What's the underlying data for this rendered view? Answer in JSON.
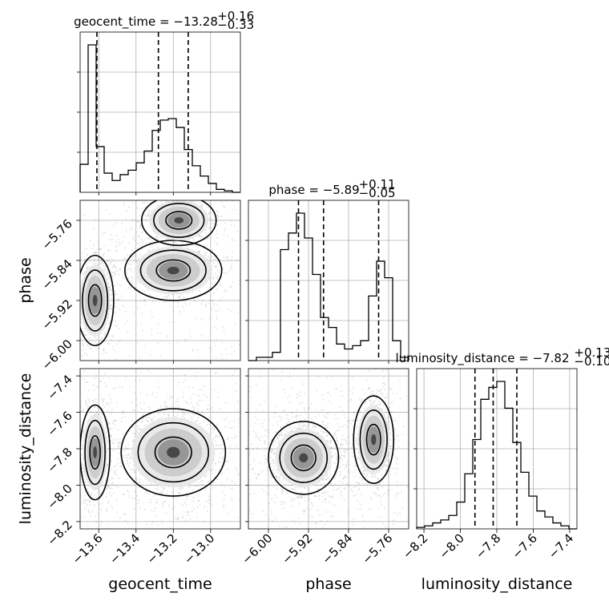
{
  "chart_data": {
    "type": "corner",
    "parameters": [
      "geocent_time",
      "phase",
      "luminosity_distance"
    ],
    "axis_labels": [
      "geocent_time",
      "phase",
      "luminosity_distance"
    ],
    "titles": [
      {
        "param": "geocent_time",
        "text": "geocent_time = −13.28",
        "sup": "+0.16",
        "sub": "−0.33",
        "median": -13.28,
        "plus": 0.16,
        "minus": 0.33
      },
      {
        "param": "phase",
        "text": "phase = −5.89",
        "sup": "+0.11",
        "sub": "−0.05",
        "median": -5.89,
        "plus": 0.11,
        "minus": 0.05
      },
      {
        "param": "luminosity_distance",
        "text": "luminosity_distance = −7.82",
        "sup": "+0.13",
        "sub": "−0.10",
        "median": -7.82,
        "plus": 0.13,
        "minus": 0.1
      }
    ],
    "ranges": {
      "geocent_time": [
        -13.7,
        -12.84
      ],
      "phase": [
        -6.04,
        -5.72
      ],
      "luminosity_distance": [
        -8.24,
        -7.36
      ]
    },
    "ticks": {
      "geocent_time": {
        "values": [
          -13.6,
          -13.4,
          -13.2,
          -13.0
        ],
        "labels": [
          "−13.6",
          "−13.4",
          "−13.2",
          "−13.0"
        ]
      },
      "phase": {
        "values": [
          -6.0,
          -5.92,
          -5.84,
          -5.76
        ],
        "labels": [
          "−6.00",
          "−5.92",
          "−5.84",
          "−5.76"
        ]
      },
      "luminosity_distance": {
        "values": [
          -8.2,
          -8.0,
          -7.8,
          -7.6,
          -7.4
        ],
        "labels": [
          "−8.2",
          "−8.0",
          "−7.8",
          "−7.6",
          "−7.4"
        ]
      }
    },
    "quantile_lines": {
      "geocent_time": [
        -13.61,
        -13.28,
        -13.12
      ],
      "phase": [
        -5.94,
        -5.89,
        -5.78
      ],
      "luminosity_distance": [
        -7.92,
        -7.82,
        -7.69
      ]
    },
    "histograms": {
      "geocent_time": [
        0.19,
        1.0,
        0.31,
        0.13,
        0.08,
        0.12,
        0.15,
        0.2,
        0.28,
        0.42,
        0.49,
        0.5,
        0.44,
        0.29,
        0.18,
        0.11,
        0.06,
        0.02,
        0.01,
        0.0
      ],
      "phase": [
        0.0,
        0.02,
        0.02,
        0.05,
        0.67,
        0.77,
        0.89,
        0.74,
        0.52,
        0.26,
        0.2,
        0.1,
        0.07,
        0.09,
        0.12,
        0.39,
        0.6,
        0.5,
        0.12,
        0.02
      ],
      "luminosity_distance": [
        0.01,
        0.02,
        0.04,
        0.06,
        0.09,
        0.18,
        0.37,
        0.6,
        0.87,
        0.95,
        0.99,
        0.81,
        0.58,
        0.38,
        0.22,
        0.12,
        0.08,
        0.04,
        0.02,
        0.0
      ]
    },
    "modes_2d": [
      {
        "x": "geocent_time",
        "y": "phase",
        "cx": -13.62,
        "cy": -5.92,
        "sx": 0.05,
        "sy": 0.045,
        "w": 0.35
      },
      {
        "x": "geocent_time",
        "y": "phase",
        "cx": -13.2,
        "cy": -5.86,
        "sx": 0.13,
        "sy": 0.03,
        "w": 0.35
      },
      {
        "x": "geocent_time",
        "y": "phase",
        "cx": -13.17,
        "cy": -5.76,
        "sx": 0.1,
        "sy": 0.025,
        "w": 0.3
      },
      {
        "x": "geocent_time",
        "y": "luminosity_distance",
        "cx": -13.62,
        "cy": -7.82,
        "sx": 0.04,
        "sy": 0.13,
        "w": 0.35
      },
      {
        "x": "geocent_time",
        "y": "luminosity_distance",
        "cx": -13.2,
        "cy": -7.82,
        "sx": 0.14,
        "sy": 0.12,
        "w": 0.65
      },
      {
        "x": "phase",
        "y": "luminosity_distance",
        "cx": -5.93,
        "cy": -7.85,
        "sx": 0.035,
        "sy": 0.1,
        "w": 0.65
      },
      {
        "x": "phase",
        "y": "luminosity_distance",
        "cx": -5.79,
        "cy": -7.75,
        "sx": 0.02,
        "sy": 0.12,
        "w": 0.35
      }
    ],
    "grid": true,
    "histogram_style": "step",
    "contour_color": "#000000",
    "scatter_color": "#7f7f7f"
  }
}
